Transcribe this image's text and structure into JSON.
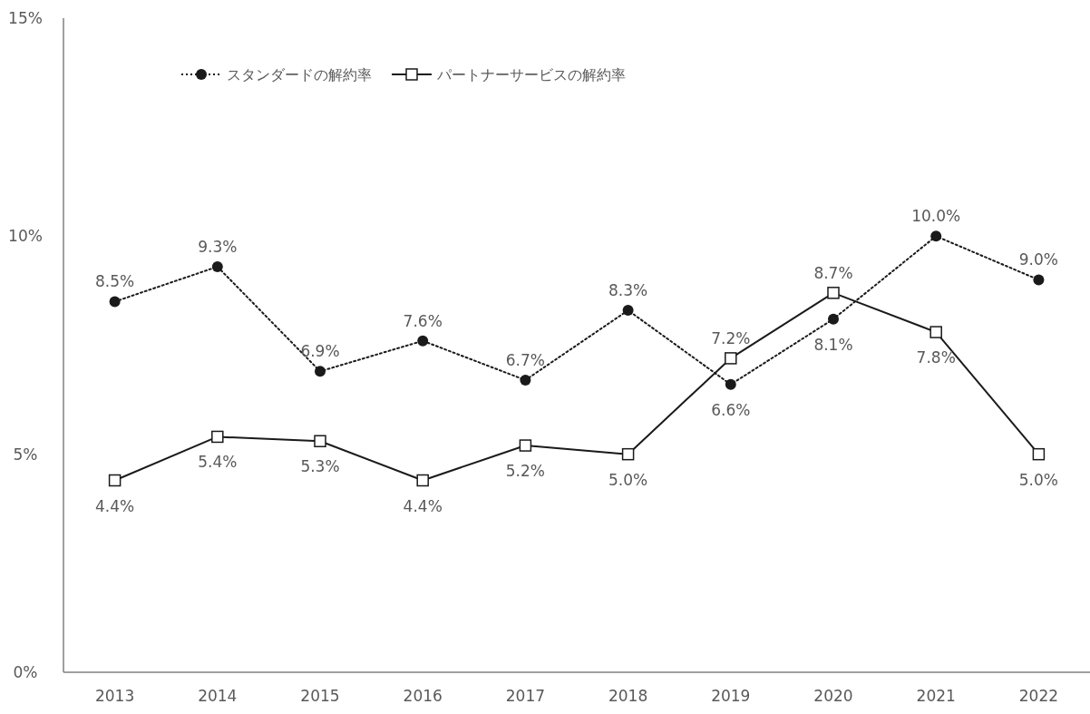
{
  "chart_data": {
    "type": "line",
    "categories": [
      "2013",
      "2014",
      "2015",
      "2016",
      "2017",
      "2018",
      "2019",
      "2020",
      "2021",
      "2022"
    ],
    "series": [
      {
        "name": "スタンダードの解約率",
        "color": "#1a1a1a",
        "marker": "circle",
        "line_style": "dotted",
        "values": [
          8.5,
          9.3,
          6.9,
          7.6,
          6.7,
          8.3,
          6.6,
          8.1,
          10.0,
          9.0
        ],
        "value_labels": [
          "8.5%",
          "9.3%",
          "6.9%",
          "7.6%",
          "6.7%",
          "8.3%",
          "6.6%",
          "8.1%",
          "10.0%",
          "9.0%"
        ]
      },
      {
        "name": "パートナーサービスの解約率",
        "color": "#1a1a1a",
        "marker": "square",
        "line_style": "solid",
        "values": [
          4.4,
          5.4,
          5.3,
          4.4,
          5.2,
          5.0,
          7.2,
          8.7,
          7.8,
          5.0
        ],
        "value_labels": [
          "4.4%",
          "5.4%",
          "5.3%",
          "4.4%",
          "5.2%",
          "5.0%",
          "7.2%",
          "8.7%",
          "7.8%",
          "5.0%"
        ]
      }
    ],
    "ylim": [
      0,
      15
    ],
    "yticks": [
      {
        "value": 0,
        "label": "0%"
      },
      {
        "value": 5,
        "label": "5%"
      },
      {
        "value": 10,
        "label": "10%"
      },
      {
        "value": 15,
        "label": "15%"
      }
    ],
    "grid": false,
    "legend": "top left"
  }
}
